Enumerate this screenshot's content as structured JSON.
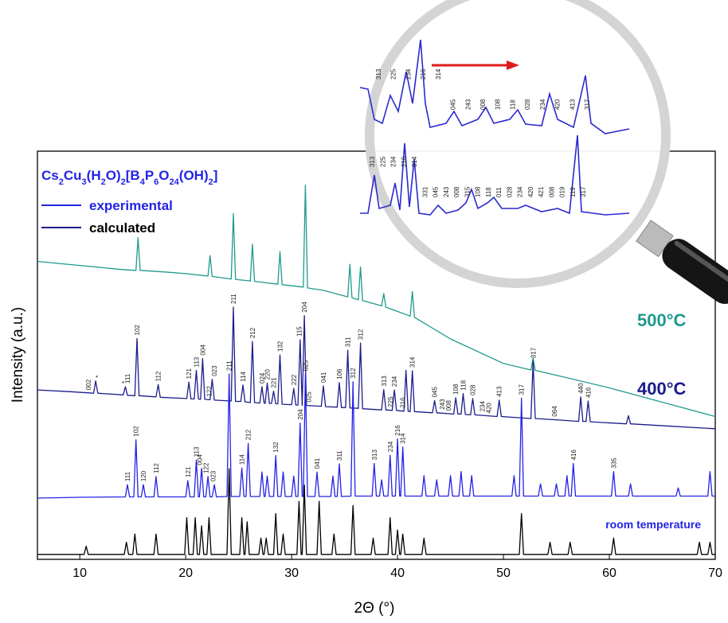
{
  "chart_data": {
    "type": "line",
    "x_label": "2Θ (°)",
    "y_label": "Intensity (a.u.)",
    "xlim": [
      6,
      70
    ],
    "ylim": [
      0,
      100
    ],
    "xticks": [
      10,
      20,
      30,
      40,
      50,
      60,
      70
    ],
    "legend": {
      "title": "Cs2Cu3(H2O)2[B4P6O24(OH)2]",
      "entries": [
        {
          "label": "experimental",
          "color": "#2323e6"
        },
        {
          "label": "calculated",
          "color": "#1c1c8c"
        }
      ]
    },
    "series": [
      {
        "name": "500°C",
        "color": "#1f9a8c",
        "x": [
          6,
          8,
          10,
          12,
          14,
          15.3,
          15.5,
          15.7,
          18,
          20,
          22.1,
          22.3,
          22.5,
          24.3,
          24.5,
          24.7,
          26.1,
          26.3,
          26.5,
          28.7,
          28.9,
          29.1,
          31.1,
          31.3,
          31.5,
          33,
          35.3,
          35.5,
          35.7,
          36.3,
          36.5,
          36.7,
          38.5,
          38.7,
          38.9,
          41.2,
          41.4,
          41.6,
          45,
          50,
          52.6,
          52.8,
          53,
          56,
          60,
          65,
          70
        ],
        "values": [
          73,
          72.5,
          72,
          71.5,
          71,
          70.8,
          78.8,
          70.8,
          70.4,
          70,
          69.4,
          74.4,
          69.3,
          68.7,
          84.7,
          68.6,
          68.2,
          77.2,
          68.1,
          67.4,
          75.4,
          67.3,
          66.7,
          91.7,
          66.5,
          65.9,
          64.3,
          72.3,
          64.1,
          63.6,
          71.6,
          63.4,
          62.1,
          65.1,
          61.8,
          59.6,
          65.6,
          59.3,
          54,
          48,
          46.4,
          49.4,
          46.3,
          44.5,
          42,
          38.5,
          35
        ]
      },
      {
        "name": "400°C",
        "color": "#1c1c8c",
        "x": [
          6,
          9,
          11.3,
          11.5,
          11.7,
          14.1,
          14.3,
          14.5,
          15.2,
          15.4,
          15.6,
          17.2,
          17.4,
          17.6,
          20.1,
          20.3,
          20.5,
          20.8,
          21.0,
          21.2,
          21.4,
          21.6,
          21.8,
          22.3,
          22.5,
          22.7,
          24.3,
          24.5,
          24.7,
          25.2,
          25.4,
          25.6,
          26.1,
          26.3,
          26.5,
          27.0,
          27.2,
          27.4,
          27.5,
          27.7,
          27.9,
          28.1,
          28.3,
          28.5,
          28.7,
          28.9,
          29.1,
          30.0,
          30.2,
          30.4,
          30.6,
          30.8,
          31.0,
          31.2,
          31.4,
          32.8,
          33.0,
          33.2,
          34.3,
          34.5,
          34.7,
          35.1,
          35.3,
          35.5,
          36.3,
          36.5,
          36.7,
          38.5,
          38.7,
          38.9,
          39.5,
          39.7,
          39.9,
          40.6,
          40.8,
          41.0,
          41.2,
          41.4,
          41.6,
          43.3,
          43.5,
          43.7,
          45.3,
          45.5,
          45.7,
          46.0,
          46.2,
          46.4,
          46.9,
          47.1,
          47.3,
          49.4,
          49.6,
          49.8,
          52.6,
          52.8,
          53.0,
          55,
          57.1,
          57.3,
          57.5,
          57.8,
          58.0,
          58.2,
          61.6,
          61.8,
          62.0,
          66,
          70
        ],
        "values": [
          41.5,
          41.1,
          40.7,
          43.7,
          40.7,
          40.3,
          42.3,
          40.2,
          40.1,
          54.1,
          40.1,
          39.8,
          42.8,
          39.7,
          39.4,
          43.4,
          39.3,
          39.3,
          46.3,
          39.3,
          39.2,
          49.2,
          39.2,
          39.1,
          44.1,
          39.0,
          38.8,
          61.8,
          38.7,
          38.7,
          42.7,
          38.6,
          38.4,
          53.4,
          38.4,
          38.3,
          42.3,
          38.3,
          38.2,
          43.2,
          38.2,
          38.2,
          41.2,
          38.1,
          38.1,
          50.1,
          38.0,
          37.9,
          41.9,
          37.8,
          37.8,
          53.8,
          37.7,
          59.7,
          37.7,
          37.5,
          42.5,
          37.4,
          37.3,
          43.3,
          37.2,
          37.2,
          51.2,
          37.1,
          37.0,
          53.0,
          36.9,
          36.6,
          41.6,
          36.6,
          36.5,
          41.5,
          36.5,
          36.3,
          46.3,
          36.3,
          36.2,
          46.2,
          36.2,
          35.9,
          38.9,
          35.9,
          35.6,
          39.6,
          35.6,
          35.6,
          40.6,
          35.5,
          35.4,
          39.4,
          35.4,
          35.0,
          39.0,
          35.0,
          34.5,
          48.5,
          34.5,
          34.2,
          33.8,
          39.8,
          33.8,
          33.8,
          38.8,
          33.7,
          33.2,
          35.2,
          33.2,
          32.6,
          32
        ]
      },
      {
        "name": "room temperature",
        "color": "#2323e6",
        "x": [
          6,
          10,
          14.3,
          14.5,
          14.7,
          15.1,
          15.3,
          15.5,
          15.8,
          16.0,
          16.2,
          17.0,
          17.2,
          17.4,
          20.0,
          20.2,
          20.4,
          20.8,
          21.0,
          21.2,
          21.3,
          21.5,
          21.7,
          21.9,
          22.1,
          22.3,
          22.5,
          22.7,
          22.9,
          23.9,
          24.1,
          24.3,
          25.1,
          25.3,
          25.5,
          25.7,
          25.9,
          26.1,
          27.0,
          27.2,
          27.4,
          27.5,
          27.7,
          27.9,
          28.3,
          28.5,
          28.7,
          29.0,
          29.2,
          29.4,
          30.0,
          30.2,
          30.4,
          30.6,
          30.8,
          31.0,
          31.1,
          31.3,
          31.5,
          32.2,
          32.4,
          32.6,
          33.7,
          33.9,
          34.1,
          34.3,
          34.5,
          34.7,
          35.6,
          35.8,
          36.0,
          37.6,
          37.8,
          38.0,
          38.3,
          38.5,
          38.7,
          39.1,
          39.3,
          39.5,
          39.8,
          40.0,
          40.2,
          40.3,
          40.5,
          40.7,
          42.3,
          42.5,
          42.7,
          43.5,
          43.7,
          43.9,
          44.8,
          45.0,
          45.2,
          45.8,
          46.0,
          46.2,
          46.8,
          47.0,
          47.2,
          50.8,
          51.0,
          51.2,
          51.5,
          51.7,
          51.9,
          53.3,
          53.5,
          53.7,
          54.8,
          55.0,
          55.2,
          55.8,
          56.0,
          56.2,
          56.4,
          56.6,
          56.8,
          60.2,
          60.4,
          60.6,
          61.8,
          62.0,
          62.2,
          66.3,
          66.5,
          66.7,
          69.3,
          69.5,
          69.7,
          70
        ],
        "values": [
          15,
          15.2,
          15.3,
          18.3,
          15.3,
          15.3,
          29.3,
          15.3,
          15.3,
          18.3,
          15.3,
          15.3,
          20.3,
          15.3,
          15.3,
          19.3,
          15.3,
          15.3,
          24.3,
          15.3,
          15.3,
          22.3,
          15.3,
          15.3,
          20.3,
          15.3,
          15.3,
          18.3,
          15.3,
          15.4,
          45.4,
          15.4,
          15.4,
          22.4,
          15.4,
          15.4,
          28.4,
          15.4,
          15.4,
          21.4,
          15.4,
          15.4,
          20.4,
          15.4,
          15.4,
          25.4,
          15.4,
          15.4,
          21.4,
          15.4,
          15.4,
          20.4,
          15.4,
          15.4,
          33.4,
          15.4,
          15.4,
          45.4,
          15.4,
          15.4,
          21.4,
          15.4,
          15.4,
          20.4,
          15.4,
          15.4,
          23.4,
          15.4,
          15.5,
          43.5,
          15.5,
          15.5,
          23.5,
          15.5,
          15.5,
          19.5,
          15.5,
          15.5,
          25.5,
          15.5,
          15.5,
          29.5,
          15.5,
          15.5,
          27.5,
          15.5,
          15.5,
          20.5,
          15.5,
          15.5,
          19.5,
          15.5,
          15.5,
          20.5,
          15.5,
          15.5,
          21.5,
          15.5,
          15.5,
          20.5,
          15.5,
          15.5,
          20.5,
          15.5,
          15.5,
          39.5,
          15.5,
          15.5,
          18.5,
          15.5,
          15.5,
          18.5,
          15.5,
          15.5,
          20.5,
          15.5,
          15.5,
          23.5,
          15.5,
          15.5,
          21.5,
          15.5,
          15.5,
          18.5,
          15.5,
          15.5,
          17.5,
          15.5,
          15.5,
          21.5,
          15.5,
          15.5
        ]
      },
      {
        "color": "#000000",
        "x": [
          6,
          10.4,
          10.6,
          10.8,
          14.2,
          14.4,
          14.6,
          15.0,
          15.2,
          15.4,
          17.0,
          17.2,
          17.4,
          19.9,
          20.1,
          20.3,
          20.7,
          20.9,
          21.1,
          21.3,
          21.5,
          21.7,
          22.0,
          22.2,
          22.4,
          23.9,
          24.1,
          24.3,
          25.1,
          25.3,
          25.5,
          25.6,
          25.8,
          26.0,
          26.9,
          27.1,
          27.3,
          27.4,
          27.6,
          27.8,
          28.3,
          28.5,
          28.7,
          29.0,
          29.2,
          29.4,
          30.5,
          30.7,
          30.9,
          31.0,
          31.2,
          31.4,
          32.4,
          32.6,
          32.8,
          33.8,
          34.0,
          34.2,
          35.6,
          35.8,
          36.0,
          37.5,
          37.7,
          37.9,
          39.1,
          39.3,
          39.5,
          39.8,
          40.0,
          40.2,
          40.3,
          40.5,
          40.7,
          42.3,
          42.5,
          42.7,
          51.5,
          51.7,
          51.9,
          54.2,
          54.4,
          54.6,
          56.1,
          56.3,
          56.5,
          60.2,
          60.4,
          60.6,
          68.3,
          68.5,
          68.7,
          69.3,
          69.5,
          69.7,
          70
        ],
        "values": [
          1.2,
          1.2,
          3.2,
          1.2,
          1.2,
          4.2,
          1.2,
          1.2,
          6.2,
          1.2,
          1.2,
          6.2,
          1.2,
          1.2,
          10.2,
          1.2,
          1.2,
          10.2,
          1.2,
          1.2,
          8.2,
          1.2,
          1.2,
          10.2,
          1.2,
          1.2,
          22.2,
          1.2,
          1.2,
          10.2,
          1.2,
          1.2,
          9.2,
          1.2,
          1.2,
          5.2,
          1.2,
          1.2,
          5.2,
          1.2,
          1.2,
          11.2,
          1.2,
          1.2,
          6.2,
          1.2,
          1.2,
          14.2,
          1.2,
          1.2,
          18.2,
          1.2,
          1.2,
          14.2,
          1.2,
          1.2,
          6.2,
          1.2,
          1.2,
          13.2,
          1.2,
          1.2,
          5.2,
          1.2,
          1.2,
          10.2,
          1.2,
          1.2,
          7.2,
          1.2,
          1.2,
          6.2,
          1.2,
          1.2,
          5.2,
          1.2,
          1.2,
          11.2,
          1.2,
          1.2,
          4.2,
          1.2,
          1.2,
          4.2,
          1.2,
          1.2,
          5.2,
          1.2,
          1.2,
          4.2,
          1.2,
          1.2,
          4.2,
          1.2,
          1.2
        ]
      }
    ],
    "annotations": [
      {
        "series": 1,
        "x": 10.8,
        "text": "002"
      },
      {
        "series": 1,
        "x": 11.7,
        "text": "*"
      },
      {
        "series": 1,
        "x": 14.2,
        "text": "*"
      },
      {
        "series": 1,
        "x": 14.5,
        "text": "111"
      },
      {
        "series": 1,
        "x": 15.4,
        "text": "102"
      },
      {
        "series": 1,
        "x": 17.4,
        "text": "112"
      },
      {
        "series": 1,
        "x": 20.3,
        "text": "121"
      },
      {
        "series": 1,
        "x": 21.0,
        "text": "113"
      },
      {
        "series": 1,
        "x": 21.6,
        "text": "004"
      },
      {
        "series": 1,
        "x": 22.2,
        "text": "122"
      },
      {
        "series": 1,
        "x": 22.7,
        "text": "023"
      },
      {
        "series": 1,
        "x": 24.5,
        "text": "211"
      },
      {
        "series": 1,
        "x": 25.4,
        "text": "114"
      },
      {
        "series": 1,
        "x": 26.3,
        "text": "212"
      },
      {
        "series": 1,
        "x": 27.2,
        "text": "024"
      },
      {
        "series": 1,
        "x": 27.7,
        "text": "220"
      },
      {
        "series": 1,
        "x": 28.3,
        "text": "221"
      },
      {
        "series": 1,
        "x": 28.9,
        "text": "132"
      },
      {
        "series": 1,
        "x": 30.2,
        "text": "222"
      },
      {
        "series": 1,
        "x": 30.7,
        "text": "115"
      },
      {
        "series": 1,
        "x": 31.2,
        "text": "204"
      },
      {
        "series": 1,
        "x": 31.6,
        "text": "025"
      },
      {
        "series": 1,
        "x": 33.0,
        "text": "041"
      },
      {
        "series": 1,
        "x": 34.5,
        "text": "106"
      },
      {
        "series": 1,
        "x": 35.3,
        "text": "311"
      },
      {
        "series": 1,
        "x": 36.5,
        "text": "312"
      },
      {
        "series": 1,
        "x": 38.7,
        "text": "313"
      },
      {
        "series": 1,
        "x": 39.3,
        "text": "225"
      },
      {
        "series": 1,
        "x": 39.7,
        "text": "234"
      },
      {
        "series": 1,
        "x": 40.5,
        "text": "216"
      },
      {
        "series": 1,
        "x": 41.4,
        "text": "314"
      },
      {
        "series": 1,
        "x": 43.5,
        "text": "045"
      },
      {
        "series": 1,
        "x": 44.2,
        "text": "243"
      },
      {
        "series": 1,
        "x": 44.8,
        "text": "008"
      },
      {
        "series": 1,
        "x": 45.5,
        "text": "108"
      },
      {
        "series": 1,
        "x": 46.2,
        "text": "118"
      },
      {
        "series": 1,
        "x": 47.1,
        "text": "028"
      },
      {
        "series": 1,
        "x": 48.0,
        "text": "234"
      },
      {
        "series": 1,
        "x": 48.6,
        "text": "420"
      },
      {
        "series": 1,
        "x": 49.6,
        "text": "413"
      },
      {
        "series": 1,
        "x": 52.8,
        "text": "317"
      },
      {
        "series": 1,
        "x": 54.8,
        "text": "064"
      },
      {
        "series": 1,
        "x": 57.3,
        "text": "440"
      },
      {
        "series": 1,
        "x": 58.0,
        "text": "416"
      },
      {
        "series": 2,
        "x": 14.5,
        "text": "111"
      },
      {
        "series": 2,
        "x": 15.3,
        "text": "102"
      },
      {
        "series": 2,
        "x": 16.0,
        "text": "120"
      },
      {
        "series": 2,
        "x": 17.2,
        "text": "112"
      },
      {
        "series": 2,
        "x": 20.2,
        "text": "121"
      },
      {
        "series": 2,
        "x": 21.0,
        "text": "113"
      },
      {
        "series": 2,
        "x": 21.3,
        "text": "004"
      },
      {
        "series": 2,
        "x": 21.9,
        "text": "122"
      },
      {
        "series": 2,
        "x": 22.6,
        "text": "023"
      },
      {
        "series": 2,
        "x": 24.1,
        "text": "211"
      },
      {
        "series": 2,
        "x": 25.3,
        "text": "114"
      },
      {
        "series": 2,
        "x": 25.9,
        "text": "212"
      },
      {
        "series": 2,
        "x": 28.5,
        "text": "132"
      },
      {
        "series": 2,
        "x": 30.8,
        "text": "204"
      },
      {
        "series": 2,
        "x": 31.3,
        "text": "025"
      },
      {
        "series": 2,
        "x": 32.4,
        "text": "041"
      },
      {
        "series": 2,
        "x": 34.5,
        "text": "311"
      },
      {
        "series": 2,
        "x": 35.8,
        "text": "312"
      },
      {
        "series": 2,
        "x": 37.8,
        "text": "313"
      },
      {
        "series": 2,
        "x": 39.3,
        "text": "234"
      },
      {
        "series": 2,
        "x": 40.0,
        "text": "216"
      },
      {
        "series": 2,
        "x": 40.5,
        "text": "314"
      },
      {
        "series": 2,
        "x": 51.7,
        "text": "317"
      },
      {
        "series": 2,
        "x": 56.6,
        "text": "416"
      },
      {
        "series": 2,
        "x": 60.4,
        "text": "335"
      }
    ],
    "inset": {
      "upper_labels": [
        "313",
        "225",
        "234",
        "216",
        "314",
        "045",
        "243",
        "008",
        "108",
        "118",
        "028",
        "234",
        "420",
        "413",
        "317"
      ],
      "lower_labels": [
        "313",
        "225",
        "234",
        "216",
        "314",
        "331",
        "045",
        "243",
        "008",
        "315",
        "108",
        "118",
        "011",
        "028",
        "234",
        "420",
        "421",
        "008",
        "019",
        "119",
        "317"
      ],
      "highlight_index": 9
    }
  }
}
